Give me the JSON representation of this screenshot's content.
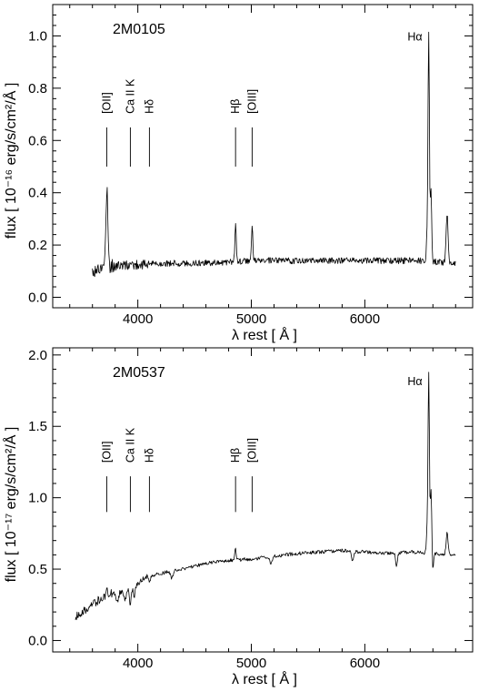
{
  "chart_data": [
    {
      "type": "line",
      "object_name": "2M0105",
      "xlabel": "λ rest   [ Å ]",
      "ylabel": "flux  [ 10⁻¹⁶ erg/s/cm²/Å ]",
      "xlim": [
        3250,
        6950
      ],
      "ylim": [
        -0.04,
        1.12
      ],
      "xticks": [
        4000,
        5000,
        6000
      ],
      "yticks": [
        0.0,
        0.2,
        0.4,
        0.6,
        0.8,
        1.0
      ],
      "ytick_labels": [
        "0.0",
        "0.2",
        "0.4",
        "0.6",
        "0.8",
        "1.0"
      ],
      "continuum": [
        [
          3600,
          0.1
        ],
        [
          3700,
          0.115
        ],
        [
          3800,
          0.12
        ],
        [
          4000,
          0.125
        ],
        [
          4200,
          0.13
        ],
        [
          4500,
          0.13
        ],
        [
          4800,
          0.135
        ],
        [
          5000,
          0.14
        ],
        [
          5500,
          0.14
        ],
        [
          6000,
          0.14
        ],
        [
          6300,
          0.14
        ],
        [
          6500,
          0.14
        ],
        [
          6800,
          0.13
        ]
      ],
      "noise": 0.012,
      "emission_lines": [
        {
          "center": 3727,
          "height": 0.3,
          "width": 9
        },
        {
          "center": 4861,
          "height": 0.15,
          "width": 6
        },
        {
          "center": 5007,
          "height": 0.13,
          "width": 6
        },
        {
          "center": 6548,
          "height": 0.1,
          "width": 6
        },
        {
          "center": 6563,
          "height": 0.88,
          "width": 6
        },
        {
          "center": 6583,
          "height": 0.28,
          "width": 6
        },
        {
          "center": 6725,
          "height": 0.18,
          "width": 9
        }
      ],
      "absorption_lines": [],
      "line_markers": [
        {
          "label": "[OII]",
          "x": 3727
        },
        {
          "label": "Ca II K",
          "x": 3934
        },
        {
          "label": "Hδ",
          "x": 4102
        },
        {
          "label": "Hβ",
          "x": 4861
        },
        {
          "label": "[OIII]",
          "x": 5007
        }
      ],
      "marker_range": [
        0.5,
        0.65
      ],
      "halpha_label": {
        "label": "Hα",
        "x": 6563,
        "y": 1.0
      },
      "series": [
        {
          "name": "",
          "x_range": [
            3600,
            6800
          ]
        }
      ]
    },
    {
      "type": "line",
      "object_name": "2M0537",
      "xlabel": "λ rest   [ Å ]",
      "ylabel": "flux  [ 10⁻¹⁷ erg/s/cm²/Å ]",
      "xlim": [
        3250,
        6950
      ],
      "ylim": [
        -0.08,
        2.05
      ],
      "xticks": [
        4000,
        5000,
        6000
      ],
      "yticks": [
        0.0,
        0.5,
        1.0,
        1.5,
        2.0
      ],
      "ytick_labels": [
        "0.0",
        "0.5",
        "1.0",
        "1.5",
        "2.0"
      ],
      "continuum": [
        [
          3450,
          0.17
        ],
        [
          3550,
          0.22
        ],
        [
          3650,
          0.28
        ],
        [
          3750,
          0.33
        ],
        [
          3850,
          0.34
        ],
        [
          3950,
          0.36
        ],
        [
          4050,
          0.44
        ],
        [
          4200,
          0.47
        ],
        [
          4400,
          0.5
        ],
        [
          4600,
          0.54
        ],
        [
          4800,
          0.56
        ],
        [
          5000,
          0.57
        ],
        [
          5200,
          0.59
        ],
        [
          5400,
          0.61
        ],
        [
          5600,
          0.62
        ],
        [
          5800,
          0.63
        ],
        [
          6000,
          0.62
        ],
        [
          6200,
          0.61
        ],
        [
          6400,
          0.62
        ],
        [
          6600,
          0.61
        ],
        [
          6800,
          0.6
        ]
      ],
      "noise": 0.012,
      "emission_lines": [
        {
          "center": 3727,
          "height": 0.08,
          "width": 6
        },
        {
          "center": 4861,
          "height": 0.08,
          "width": 6
        },
        {
          "center": 6548,
          "height": 0.15,
          "width": 6
        },
        {
          "center": 6563,
          "height": 1.27,
          "width": 6
        },
        {
          "center": 6583,
          "height": 0.45,
          "width": 6
        },
        {
          "center": 6725,
          "height": 0.16,
          "width": 8
        }
      ],
      "absorption_lines": [
        {
          "center": 3820,
          "depth": 0.06,
          "width": 10
        },
        {
          "center": 3889,
          "depth": 0.07,
          "width": 8
        },
        {
          "center": 3934,
          "depth": 0.1,
          "width": 7
        },
        {
          "center": 3968,
          "depth": 0.09,
          "width": 7
        },
        {
          "center": 4102,
          "depth": 0.05,
          "width": 8
        },
        {
          "center": 4300,
          "depth": 0.05,
          "width": 10
        },
        {
          "center": 5175,
          "depth": 0.05,
          "width": 12
        },
        {
          "center": 5893,
          "depth": 0.07,
          "width": 8
        },
        {
          "center": 6280,
          "depth": 0.09,
          "width": 8
        },
        {
          "center": 6600,
          "depth": 0.12,
          "width": 5
        }
      ],
      "line_markers": [
        {
          "label": "[OII]",
          "x": 3727
        },
        {
          "label": "Ca II K",
          "x": 3934
        },
        {
          "label": "Hδ",
          "x": 4102
        },
        {
          "label": "Hβ",
          "x": 4861
        },
        {
          "label": "[OIII]",
          "x": 5007
        }
      ],
      "marker_range": [
        0.9,
        1.15
      ],
      "halpha_label": {
        "label": "Hα",
        "x": 6563,
        "y": 1.82
      },
      "series": [
        {
          "name": "",
          "x_range": [
            3450,
            6800
          ]
        }
      ]
    }
  ]
}
